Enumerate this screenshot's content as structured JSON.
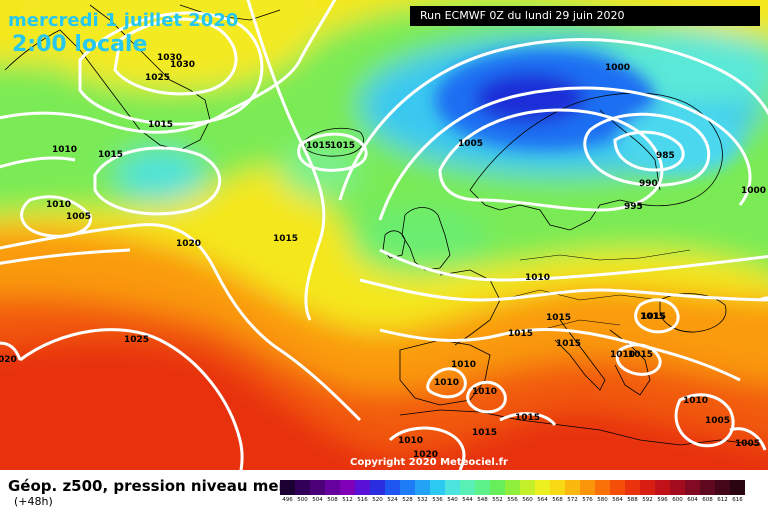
{
  "header": {
    "date_text": "mercredi 1 juillet 2020",
    "time_text": "2:00 locale",
    "run_text": "Run ECMWF 0Z du lundi 29 juin 2020"
  },
  "footer": {
    "copyright": "Copyright 2020 Meteociel.fr",
    "title": "Géop. z500, pression niveau mer",
    "lead": "(+48h)"
  },
  "colors": {
    "date_text": "#27c8f0",
    "isobar": "#ffffff"
  },
  "legend": {
    "values": [
      "496",
      "500",
      "504",
      "508",
      "512",
      "516",
      "520",
      "524",
      "528",
      "532",
      "536",
      "540",
      "544",
      "548",
      "552",
      "556",
      "560",
      "564",
      "568",
      "572",
      "576",
      "580",
      "584",
      "588",
      "592",
      "596",
      "600",
      "604",
      "608",
      "612",
      "616"
    ],
    "colors": [
      "#1c0033",
      "#320059",
      "#4b007a",
      "#66009e",
      "#8000b8",
      "#5a10d6",
      "#2a2ee0",
      "#1f55f0",
      "#1e7cf7",
      "#24a2f5",
      "#2ccaf2",
      "#4de4e0",
      "#59f0b5",
      "#5ef28a",
      "#66ef5a",
      "#90ef3a",
      "#c4f02a",
      "#ecf020",
      "#f7da15",
      "#fbb80e",
      "#fb950a",
      "#f97108",
      "#f44e08",
      "#ea330c",
      "#d81e12",
      "#c01218",
      "#a20c1e",
      "#820a22",
      "#600820",
      "#440618",
      "#2a0410"
    ]
  },
  "isobar_labels": [
    {
      "text": "1030"
    },
    {
      "text": "1030"
    },
    {
      "text": "1025"
    },
    {
      "text": "1015"
    },
    {
      "text": "1010"
    },
    {
      "text": "1015"
    },
    {
      "text": "1010"
    },
    {
      "text": "1005"
    },
    {
      "text": "1020"
    },
    {
      "text": "1015"
    },
    {
      "text": "1015"
    },
    {
      "text": "1015"
    },
    {
      "text": "1005"
    },
    {
      "text": "1000"
    },
    {
      "text": "985"
    },
    {
      "text": "990"
    },
    {
      "text": "995"
    },
    {
      "text": "1000"
    },
    {
      "text": "1010"
    },
    {
      "text": "1015"
    },
    {
      "text": "1015"
    },
    {
      "text": "1015"
    },
    {
      "text": "1015"
    },
    {
      "text": "1010"
    },
    {
      "text": "1015"
    },
    {
      "text": "1010"
    },
    {
      "text": "1010"
    },
    {
      "text": "1010"
    },
    {
      "text": "1015"
    },
    {
      "text": "1015"
    },
    {
      "text": "1010"
    },
    {
      "text": "1005"
    },
    {
      "text": "1005"
    },
    {
      "text": "1025"
    },
    {
      "text": "1010"
    },
    {
      "text": "1020"
    },
    {
      "text": "020"
    },
    {
      "text": "1015"
    }
  ]
}
